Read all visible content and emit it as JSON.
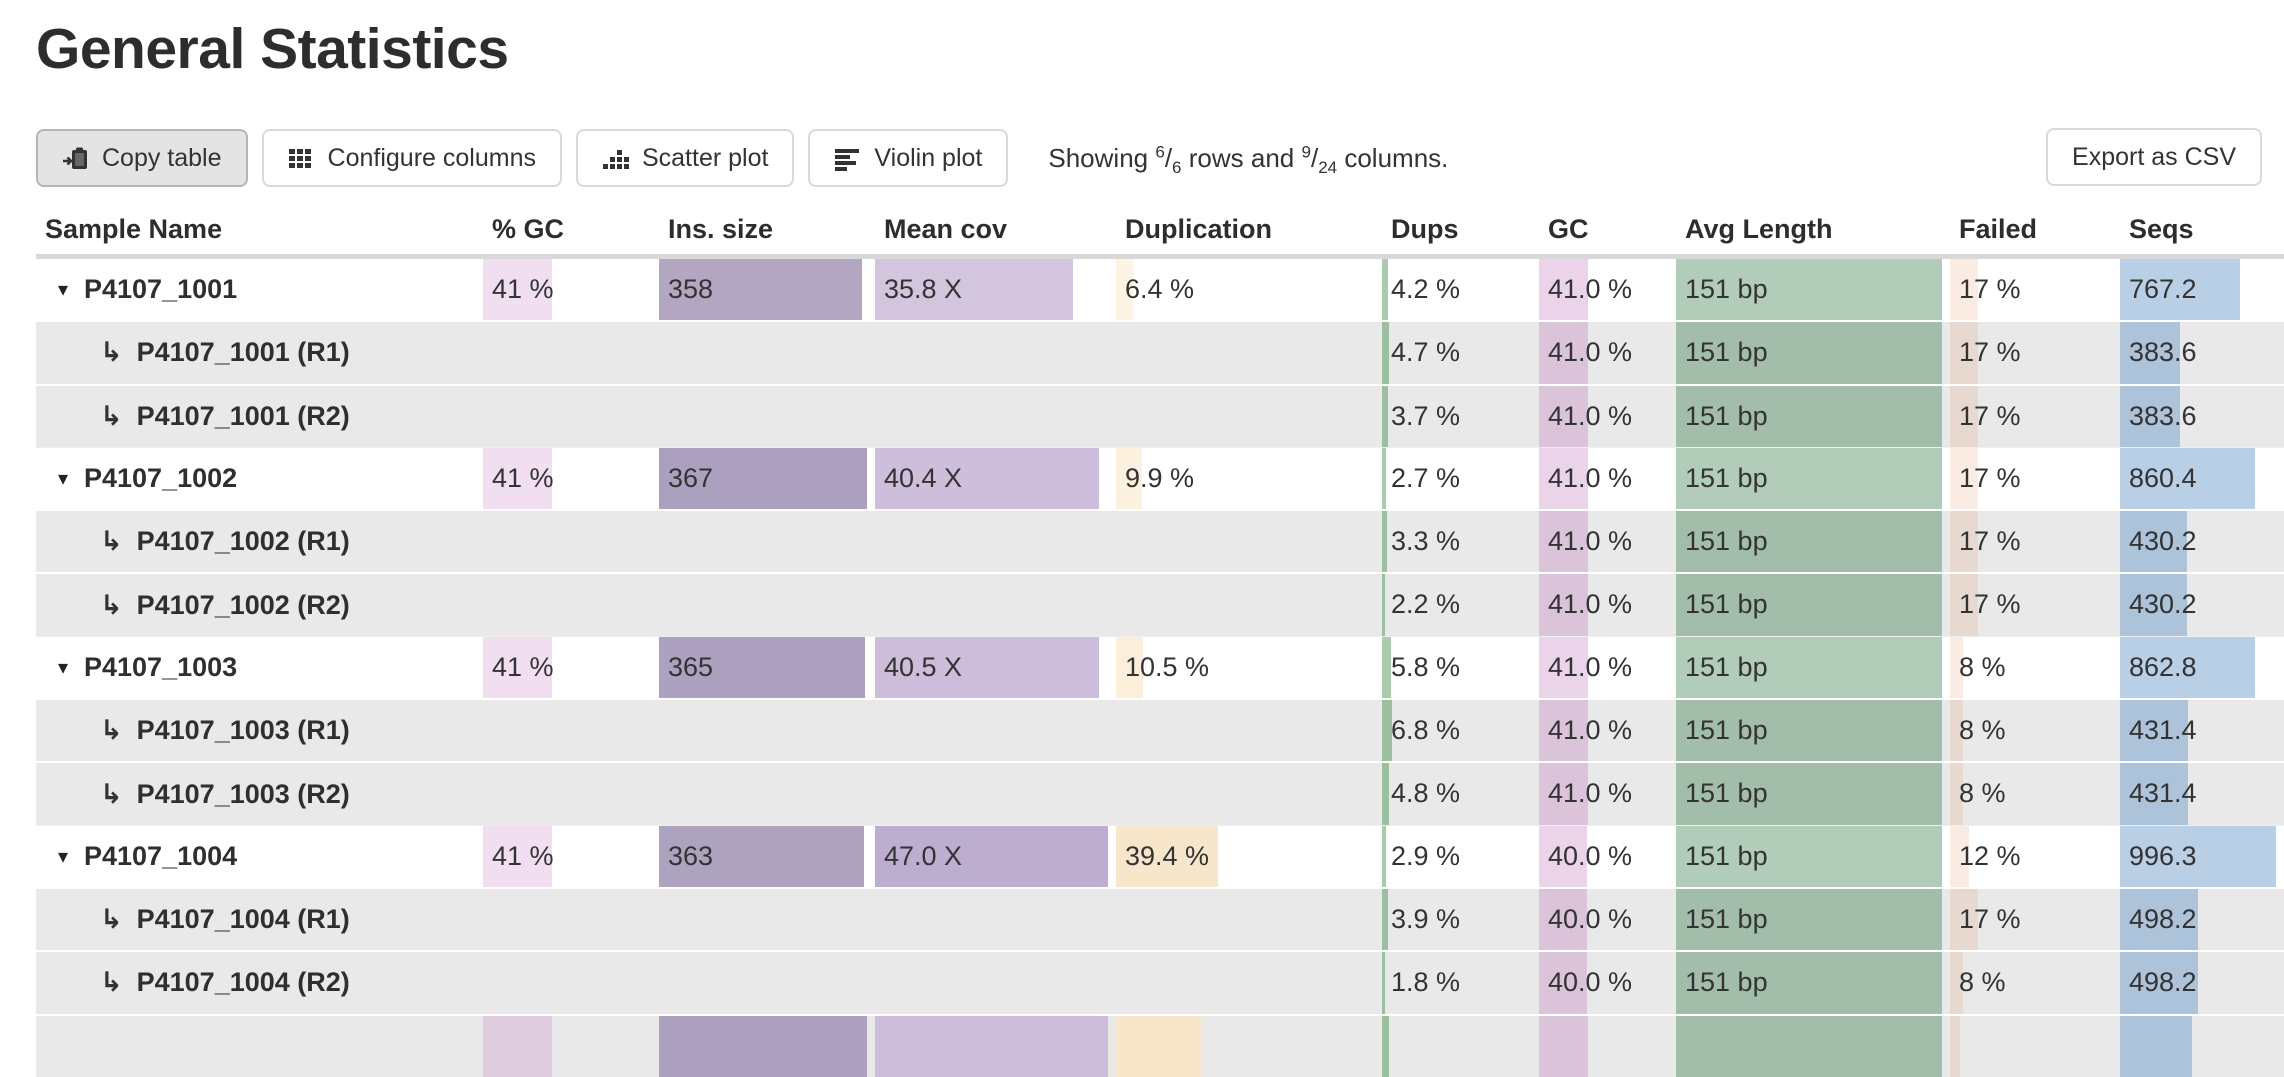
{
  "page": {
    "title": "General Statistics"
  },
  "toolbar": {
    "copy_label": "Copy table",
    "configure_label": "Configure columns",
    "scatter_label": "Scatter plot",
    "violin_label": "Violin plot",
    "export_label": "Export as CSV",
    "showing": {
      "prefix": "Showing",
      "rows_shown": "6",
      "rows_total": "6",
      "middle": "rows and",
      "cols_shown": "9",
      "cols_total": "24",
      "suffix": "columns."
    }
  },
  "table": {
    "columns": [
      {
        "id": "sample",
        "label": "Sample Name"
      },
      {
        "id": "pct_gc",
        "label": "% GC"
      },
      {
        "id": "ins",
        "label": "Ins. size"
      },
      {
        "id": "cov",
        "label": "Mean cov"
      },
      {
        "id": "dup",
        "label": "Duplication"
      },
      {
        "id": "dups",
        "label": "Dups"
      },
      {
        "id": "gc",
        "label": "GC"
      },
      {
        "id": "len",
        "label": "Avg Length"
      },
      {
        "id": "failed",
        "label": "Failed"
      },
      {
        "id": "seqs",
        "label": "Seqs"
      }
    ],
    "bar_colors": {
      "pct_gc": "rgba(193,110,190,0.22)",
      "dups": "rgba(46,125,50,0.40)",
      "gc": "rgba(183,100,180,0.28)",
      "len": "rgba(35,109,58,0.35)",
      "failed": "rgba(220,130,60,0.15)",
      "seqs": "rgba(97,148,199,0.45)"
    },
    "rows": [
      {
        "type": "sample",
        "name": "P4107_1001",
        "cells": {
          "pct_gc": {
            "text": "41 %",
            "frac": 0.41
          },
          "ins": {
            "text": "358",
            "frac": 0.975,
            "color": "#b3a6c1"
          },
          "cov": {
            "text": "35.8 X",
            "frac": 0.85,
            "color": "#d4c5df"
          },
          "dup": {
            "text": "6.4 %",
            "frac": 0.064,
            "color": "#fdf4e4"
          },
          "dups": {
            "text": "4.2 %",
            "frac": 0.042
          },
          "gc": {
            "text": "41.0 %",
            "frac": 0.38
          },
          "len": {
            "text": "151 bp",
            "frac": 1
          },
          "failed": {
            "text": "17 %",
            "frac": 0.17
          },
          "seqs": {
            "text": "767.2",
            "frac": 0.77
          }
        }
      },
      {
        "type": "subsample",
        "name": "P4107_1001 (R1)",
        "cells": {
          "dups": {
            "text": "4.7 %",
            "frac": 0.047
          },
          "gc": {
            "text": "41.0 %",
            "frac": 0.38
          },
          "len": {
            "text": "151 bp",
            "frac": 1
          },
          "failed": {
            "text": "17 %",
            "frac": 0.17
          },
          "seqs": {
            "text": "383.6",
            "frac": 0.385
          }
        }
      },
      {
        "type": "subsample",
        "name": "P4107_1001 (R2)",
        "cells": {
          "dups": {
            "text": "3.7 %",
            "frac": 0.037
          },
          "gc": {
            "text": "41.0 %",
            "frac": 0.38
          },
          "len": {
            "text": "151 bp",
            "frac": 1
          },
          "failed": {
            "text": "17 %",
            "frac": 0.17
          },
          "seqs": {
            "text": "383.6",
            "frac": 0.385
          }
        }
      },
      {
        "type": "sample",
        "name": "P4107_1002",
        "cells": {
          "pct_gc": {
            "text": "41 %",
            "frac": 0.41
          },
          "ins": {
            "text": "367",
            "frac": 1,
            "color": "#aba0bd"
          },
          "cov": {
            "text": "40.4 X",
            "frac": 0.96,
            "color": "#cebddb"
          },
          "dup": {
            "text": "9.9 %",
            "frac": 0.099,
            "color": "#fcf1df"
          },
          "dups": {
            "text": "2.7 %",
            "frac": 0.027
          },
          "gc": {
            "text": "41.0 %",
            "frac": 0.38
          },
          "len": {
            "text": "151 bp",
            "frac": 1
          },
          "failed": {
            "text": "17 %",
            "frac": 0.17
          },
          "seqs": {
            "text": "860.4",
            "frac": 0.864
          }
        }
      },
      {
        "type": "subsample",
        "name": "P4107_1002 (R1)",
        "cells": {
          "dups": {
            "text": "3.3 %",
            "frac": 0.033
          },
          "gc": {
            "text": "41.0 %",
            "frac": 0.38
          },
          "len": {
            "text": "151 bp",
            "frac": 1
          },
          "failed": {
            "text": "17 %",
            "frac": 0.17
          },
          "seqs": {
            "text": "430.2",
            "frac": 0.432
          }
        }
      },
      {
        "type": "subsample",
        "name": "P4107_1002 (R2)",
        "cells": {
          "dups": {
            "text": "2.2 %",
            "frac": 0.022
          },
          "gc": {
            "text": "41.0 %",
            "frac": 0.38
          },
          "len": {
            "text": "151 bp",
            "frac": 1
          },
          "failed": {
            "text": "17 %",
            "frac": 0.17
          },
          "seqs": {
            "text": "430.2",
            "frac": 0.432
          }
        }
      },
      {
        "type": "sample",
        "name": "P4107_1003",
        "cells": {
          "pct_gc": {
            "text": "41 %",
            "frac": 0.41
          },
          "ins": {
            "text": "365",
            "frac": 0.99,
            "color": "#aca1be"
          },
          "cov": {
            "text": "40.5 X",
            "frac": 0.96,
            "color": "#cdbcda"
          },
          "dup": {
            "text": "10.5 %",
            "frac": 0.105,
            "color": "#fbefdb"
          },
          "dups": {
            "text": "5.8 %",
            "frac": 0.058
          },
          "gc": {
            "text": "41.0 %",
            "frac": 0.38
          },
          "len": {
            "text": "151 bp",
            "frac": 1
          },
          "failed": {
            "text": "8 %",
            "frac": 0.08
          },
          "seqs": {
            "text": "862.8",
            "frac": 0.866
          }
        }
      },
      {
        "type": "subsample",
        "name": "P4107_1003 (R1)",
        "cells": {
          "dups": {
            "text": "6.8 %",
            "frac": 0.068
          },
          "gc": {
            "text": "41.0 %",
            "frac": 0.38
          },
          "len": {
            "text": "151 bp",
            "frac": 1
          },
          "failed": {
            "text": "8 %",
            "frac": 0.08
          },
          "seqs": {
            "text": "431.4",
            "frac": 0.433
          }
        }
      },
      {
        "type": "subsample",
        "name": "P4107_1003 (R2)",
        "cells": {
          "dups": {
            "text": "4.8 %",
            "frac": 0.048
          },
          "gc": {
            "text": "41.0 %",
            "frac": 0.38
          },
          "len": {
            "text": "151 bp",
            "frac": 1
          },
          "failed": {
            "text": "8 %",
            "frac": 0.08
          },
          "seqs": {
            "text": "431.4",
            "frac": 0.433
          }
        }
      },
      {
        "type": "sample",
        "name": "P4107_1004",
        "cells": {
          "pct_gc": {
            "text": "41 %",
            "frac": 0.41
          },
          "ins": {
            "text": "363",
            "frac": 0.985,
            "color": "#aea3bf"
          },
          "cov": {
            "text": "47.0 X",
            "frac": 1,
            "color": "#bdadce"
          },
          "dup": {
            "text": "39.4 %",
            "frac": 0.394,
            "color": "#f8e6cb"
          },
          "dups": {
            "text": "2.9 %",
            "frac": 0.029
          },
          "gc": {
            "text": "40.0 %",
            "frac": 0.37
          },
          "len": {
            "text": "151 bp",
            "frac": 1
          },
          "failed": {
            "text": "12 %",
            "frac": 0.12
          },
          "seqs": {
            "text": "996.3",
            "frac": 1
          }
        }
      },
      {
        "type": "subsample",
        "name": "P4107_1004 (R1)",
        "cells": {
          "dups": {
            "text": "3.9 %",
            "frac": 0.039
          },
          "gc": {
            "text": "40.0 %",
            "frac": 0.37
          },
          "len": {
            "text": "151 bp",
            "frac": 1
          },
          "failed": {
            "text": "17 %",
            "frac": 0.17
          },
          "seqs": {
            "text": "498.2",
            "frac": 0.5
          }
        }
      },
      {
        "type": "subsample",
        "name": "P4107_1004 (R2)",
        "cells": {
          "dups": {
            "text": "1.8 %",
            "frac": 0.018
          },
          "gc": {
            "text": "40.0 %",
            "frac": 0.37
          },
          "len": {
            "text": "151 bp",
            "frac": 1
          },
          "failed": {
            "text": "8 %",
            "frac": 0.08
          },
          "seqs": {
            "text": "498.2",
            "frac": 0.5
          }
        }
      },
      {
        "type": "partial",
        "name": "",
        "cells": {
          "pct_gc": {
            "text": "",
            "frac": 0.41
          },
          "ins": {
            "text": "",
            "frac": 1,
            "color": "#aca1be"
          },
          "cov": {
            "text": "",
            "frac": 1,
            "color": "#cdbcda"
          },
          "dup": {
            "text": "",
            "frac": 0.33,
            "color": "#f8e6cb"
          },
          "dups": {
            "text": "",
            "frac": 0.05
          },
          "gc": {
            "text": "",
            "frac": 0.38
          },
          "len": {
            "text": "",
            "frac": 1
          },
          "failed": {
            "text": "",
            "frac": 0.06
          },
          "seqs": {
            "text": "",
            "frac": 0.46
          }
        }
      }
    ]
  }
}
